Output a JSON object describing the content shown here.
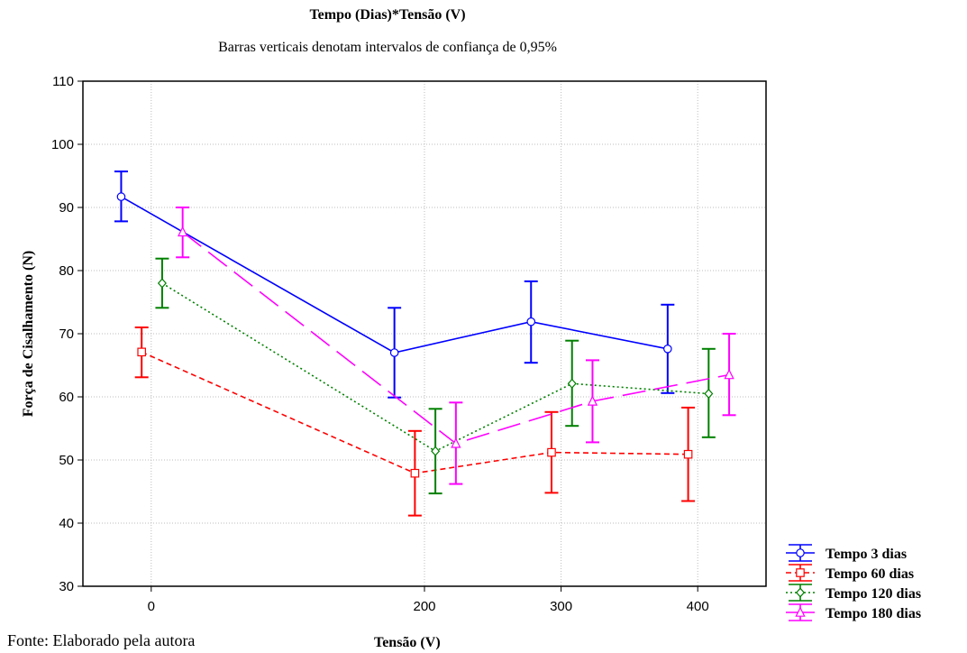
{
  "title": "Tempo (Dias)*Tensão (V)",
  "subtitle": "Barras verticais denotam intervalos de confiança de 0,95%",
  "source_note": "Fonte: Elaborado pela autora",
  "chart_data": {
    "type": "line",
    "xlabel": "Tensão (V)",
    "ylabel": "Força de Cisalhamento (N)",
    "xlim": [
      -50,
      450
    ],
    "ylim": [
      30,
      110
    ],
    "xticks": [
      0,
      200,
      300,
      400
    ],
    "yticks": [
      30,
      40,
      50,
      60,
      70,
      80,
      90,
      100,
      110
    ],
    "grid": true,
    "legend_position": "bottom-right",
    "series": [
      {
        "name": "Tempo 3 dias",
        "color": "#0000ff",
        "marker": "circle",
        "line_style": "solid",
        "x": [
          -22,
          178,
          278,
          378
        ],
        "y": [
          91.7,
          67.0,
          71.9,
          67.6
        ],
        "lower": [
          87.8,
          59.9,
          65.4,
          60.6
        ],
        "upper": [
          95.7,
          74.1,
          78.3,
          74.6
        ]
      },
      {
        "name": "Tempo 60 dias",
        "color": "#ff0000",
        "marker": "square",
        "line_style": "dashed",
        "x": [
          -7,
          193,
          293,
          393
        ],
        "y": [
          67.1,
          47.9,
          51.2,
          50.9
        ],
        "lower": [
          63.1,
          41.2,
          44.8,
          43.5
        ],
        "upper": [
          71.0,
          54.6,
          57.6,
          58.3
        ]
      },
      {
        "name": "Tempo 120 dias",
        "color": "#008000",
        "marker": "diamond",
        "line_style": "dotted",
        "x": [
          8,
          208,
          308,
          408
        ],
        "y": [
          78.0,
          51.4,
          62.1,
          60.5
        ],
        "lower": [
          74.1,
          44.7,
          55.4,
          53.6
        ],
        "upper": [
          81.9,
          58.1,
          68.9,
          67.6
        ]
      },
      {
        "name": "Tempo 180 dias",
        "color": "#ff00ff",
        "marker": "triangle",
        "line_style": "longdash",
        "x": [
          23,
          223,
          323,
          423
        ],
        "y": [
          86.1,
          52.6,
          59.3,
          63.5
        ],
        "lower": [
          82.1,
          46.2,
          52.8,
          57.1
        ],
        "upper": [
          90.0,
          59.1,
          65.8,
          70.0
        ]
      }
    ]
  }
}
